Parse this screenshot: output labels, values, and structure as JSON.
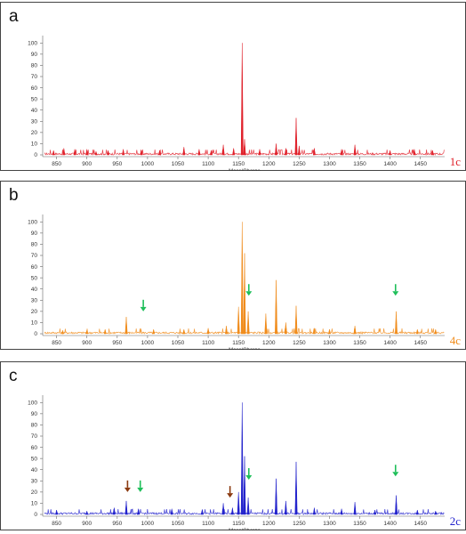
{
  "chart_data": [
    {
      "type": "line",
      "panel_label": "a",
      "color": "#e0202a",
      "xlabel": "Mass/Charge",
      "ylabel": "",
      "xlim": [
        830,
        1490
      ],
      "ylim": [
        0,
        105
      ],
      "x_ticks": [
        "850",
        "900",
        "950",
        "1000",
        "1050",
        "1100",
        "1150",
        "1200",
        "1250",
        "1300",
        "1350",
        "1400",
        "1450"
      ],
      "y_ticks": [
        "0",
        "10",
        "20",
        "30",
        "40",
        "50",
        "60",
        "70",
        "80",
        "90",
        "100"
      ],
      "corner_tag": "1c",
      "peaks": [
        {
          "mz": 845,
          "intensity": 4
        },
        {
          "mz": 862,
          "intensity": 6
        },
        {
          "mz": 880,
          "intensity": 5
        },
        {
          "mz": 900,
          "intensity": 5
        },
        {
          "mz": 915,
          "intensity": 3
        },
        {
          "mz": 935,
          "intensity": 4
        },
        {
          "mz": 960,
          "intensity": 5
        },
        {
          "mz": 990,
          "intensity": 4
        },
        {
          "mz": 1020,
          "intensity": 4
        },
        {
          "mz": 1060,
          "intensity": 7
        },
        {
          "mz": 1085,
          "intensity": 5
        },
        {
          "mz": 1105,
          "intensity": 4
        },
        {
          "mz": 1125,
          "intensity": 9
        },
        {
          "mz": 1142,
          "intensity": 6
        },
        {
          "mz": 1156,
          "intensity": 100
        },
        {
          "mz": 1160,
          "intensity": 14
        },
        {
          "mz": 1185,
          "intensity": 5
        },
        {
          "mz": 1212,
          "intensity": 10
        },
        {
          "mz": 1228,
          "intensity": 6
        },
        {
          "mz": 1245,
          "intensity": 33
        },
        {
          "mz": 1250,
          "intensity": 8
        },
        {
          "mz": 1275,
          "intensity": 6
        },
        {
          "mz": 1320,
          "intensity": 5
        },
        {
          "mz": 1342,
          "intensity": 9
        },
        {
          "mz": 1400,
          "intensity": 4
        },
        {
          "mz": 1440,
          "intensity": 5
        },
        {
          "mz": 1470,
          "intensity": 4
        }
      ],
      "arrows": []
    },
    {
      "type": "line",
      "panel_label": "b",
      "color": "#f08c1c",
      "xlabel": "Mass/Charge",
      "ylabel": "",
      "xlim": [
        830,
        1490
      ],
      "ylim": [
        0,
        105
      ],
      "x_ticks": [
        "850",
        "900",
        "950",
        "1000",
        "1050",
        "1100",
        "1150",
        "1200",
        "1250",
        "1300",
        "1350",
        "1400",
        "1450"
      ],
      "y_ticks": [
        "0",
        "10",
        "20",
        "30",
        "40",
        "50",
        "60",
        "70",
        "80",
        "90",
        "100"
      ],
      "corner_tag": "4c",
      "peaks": [
        {
          "mz": 860,
          "intensity": 3
        },
        {
          "mz": 900,
          "intensity": 3
        },
        {
          "mz": 930,
          "intensity": 4
        },
        {
          "mz": 965,
          "intensity": 15
        },
        {
          "mz": 1010,
          "intensity": 4
        },
        {
          "mz": 1060,
          "intensity": 4
        },
        {
          "mz": 1100,
          "intensity": 5
        },
        {
          "mz": 1130,
          "intensity": 7
        },
        {
          "mz": 1150,
          "intensity": 24
        },
        {
          "mz": 1156,
          "intensity": 100
        },
        {
          "mz": 1160,
          "intensity": 72
        },
        {
          "mz": 1166,
          "intensity": 20
        },
        {
          "mz": 1195,
          "intensity": 18
        },
        {
          "mz": 1212,
          "intensity": 48
        },
        {
          "mz": 1228,
          "intensity": 10
        },
        {
          "mz": 1245,
          "intensity": 25
        },
        {
          "mz": 1275,
          "intensity": 5
        },
        {
          "mz": 1300,
          "intensity": 4
        },
        {
          "mz": 1342,
          "intensity": 7
        },
        {
          "mz": 1410,
          "intensity": 20
        },
        {
          "mz": 1445,
          "intensity": 4
        },
        {
          "mz": 1475,
          "intensity": 4
        }
      ],
      "arrows": [
        {
          "mz": 993,
          "intensity": 24,
          "color": "#1fbf5a"
        },
        {
          "mz": 1167,
          "intensity": 38,
          "color": "#1fbf5a"
        },
        {
          "mz": 1409,
          "intensity": 38,
          "color": "#1fbf5a"
        }
      ]
    },
    {
      "type": "line",
      "panel_label": "c",
      "color": "#2222cc",
      "xlabel": "Mass/Charge",
      "ylabel": "",
      "xlim": [
        830,
        1490
      ],
      "ylim": [
        0,
        105
      ],
      "x_ticks": [
        "850",
        "900",
        "950",
        "1000",
        "1050",
        "1100",
        "1150",
        "1200",
        "1250",
        "1300",
        "1350",
        "1400",
        "1450"
      ],
      "y_ticks": [
        "0",
        "10",
        "20",
        "30",
        "40",
        "50",
        "60",
        "70",
        "80",
        "90",
        "100"
      ],
      "corner_tag": "2c",
      "peaks": [
        {
          "mz": 850,
          "intensity": 4
        },
        {
          "mz": 900,
          "intensity": 3
        },
        {
          "mz": 945,
          "intensity": 6
        },
        {
          "mz": 965,
          "intensity": 12
        },
        {
          "mz": 985,
          "intensity": 5
        },
        {
          "mz": 1040,
          "intensity": 5
        },
        {
          "mz": 1090,
          "intensity": 4
        },
        {
          "mz": 1125,
          "intensity": 10
        },
        {
          "mz": 1140,
          "intensity": 6
        },
        {
          "mz": 1150,
          "intensity": 20
        },
        {
          "mz": 1156,
          "intensity": 100
        },
        {
          "mz": 1160,
          "intensity": 52
        },
        {
          "mz": 1166,
          "intensity": 15
        },
        {
          "mz": 1212,
          "intensity": 32
        },
        {
          "mz": 1228,
          "intensity": 12
        },
        {
          "mz": 1245,
          "intensity": 47
        },
        {
          "mz": 1275,
          "intensity": 6
        },
        {
          "mz": 1320,
          "intensity": 5
        },
        {
          "mz": 1342,
          "intensity": 11
        },
        {
          "mz": 1375,
          "intensity": 4
        },
        {
          "mz": 1410,
          "intensity": 17
        },
        {
          "mz": 1445,
          "intensity": 4
        },
        {
          "mz": 1475,
          "intensity": 3
        }
      ],
      "arrows": [
        {
          "mz": 967,
          "intensity": 24,
          "color": "#8b3a10"
        },
        {
          "mz": 988,
          "intensity": 24,
          "color": "#1fbf5a"
        },
        {
          "mz": 1136,
          "intensity": 19,
          "color": "#8b3a10"
        },
        {
          "mz": 1167,
          "intensity": 35,
          "color": "#1fbf5a"
        },
        {
          "mz": 1409,
          "intensity": 38,
          "color": "#1fbf5a"
        }
      ]
    }
  ]
}
